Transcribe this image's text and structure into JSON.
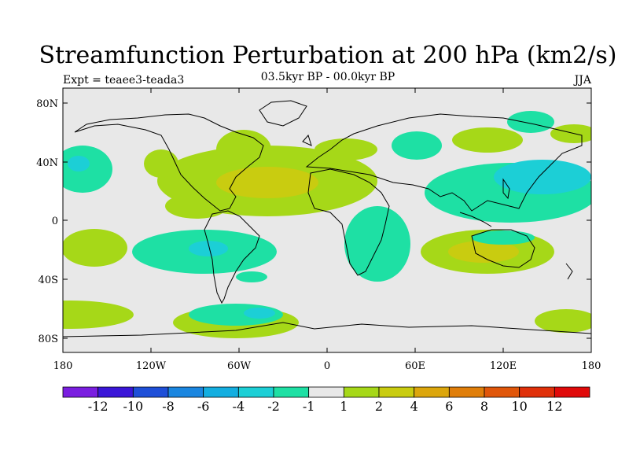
{
  "title": "Streamfunction Perturbation at 200 hPa (km2/s)",
  "subtitle_center": "03.5kyr BP - 00.0kyr BP",
  "subtitle_left": "Expt = teaee3-teada3",
  "subtitle_right": "JJA",
  "y_ticks": [
    "80N",
    "40N",
    "0",
    "40S",
    "80S"
  ],
  "x_ticks": [
    "180",
    "120W",
    "60W",
    "0",
    "60E",
    "120E",
    "180"
  ],
  "colorbar": {
    "colors": [
      "#7a1ee0",
      "#3a16d8",
      "#1e4fd8",
      "#1a86e0",
      "#13aee0",
      "#1ccfd6",
      "#1ee0a4",
      "#e8e8e8",
      "#a6d818",
      "#c9cc10",
      "#dca60c",
      "#e07e0a",
      "#e0560a",
      "#e0300a",
      "#e00a0a"
    ],
    "labels": [
      "-12",
      "-10",
      "-8",
      "-6",
      "-4",
      "-2",
      "-1",
      "1",
      "2",
      "4",
      "6",
      "8",
      "10",
      "12"
    ]
  },
  "colors": {
    "background": "#e8e8e8",
    "level_m2": "#1ccfd6",
    "level_m1": "#1ee0a4",
    "level_p1": "#a6d818",
    "level_p2": "#c9cc10"
  }
}
